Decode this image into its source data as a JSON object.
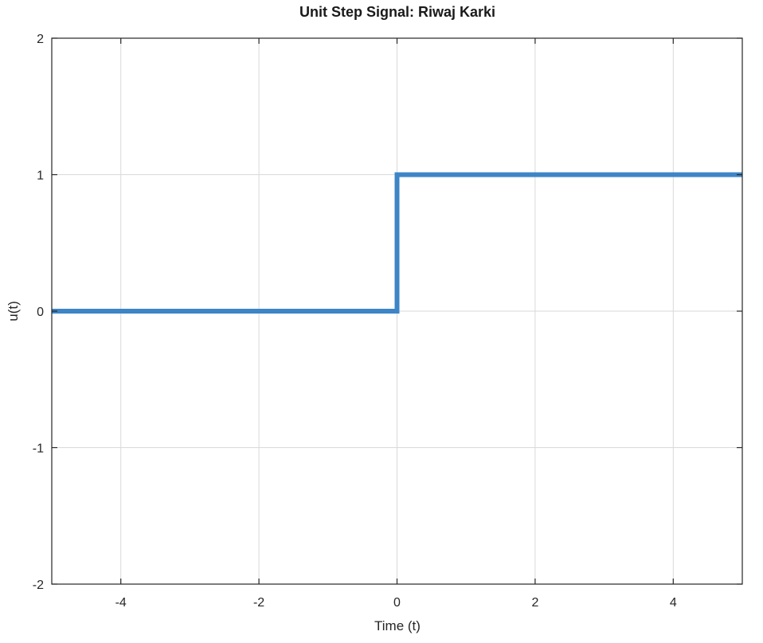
{
  "chart_data": {
    "type": "line",
    "title": "Unit Step Signal: Riwaj Karki",
    "xlabel": "Time (t)",
    "ylabel": "u(t)",
    "xlim": [
      -5,
      5
    ],
    "ylim": [
      -2,
      2
    ],
    "xticks": [
      -4,
      -2,
      0,
      2,
      4
    ],
    "xtick_labels": [
      "-4",
      "-2",
      "0",
      "2",
      "4"
    ],
    "yticks": [
      -2,
      -1,
      0,
      1,
      2
    ],
    "ytick_labels": [
      "-2",
      "-1",
      "0",
      "1",
      "2"
    ],
    "grid": true,
    "series": [
      {
        "x": [
          -5,
          0,
          0,
          5
        ],
        "y": [
          0,
          0,
          1,
          1
        ],
        "color": "#3d85c6"
      }
    ]
  }
}
